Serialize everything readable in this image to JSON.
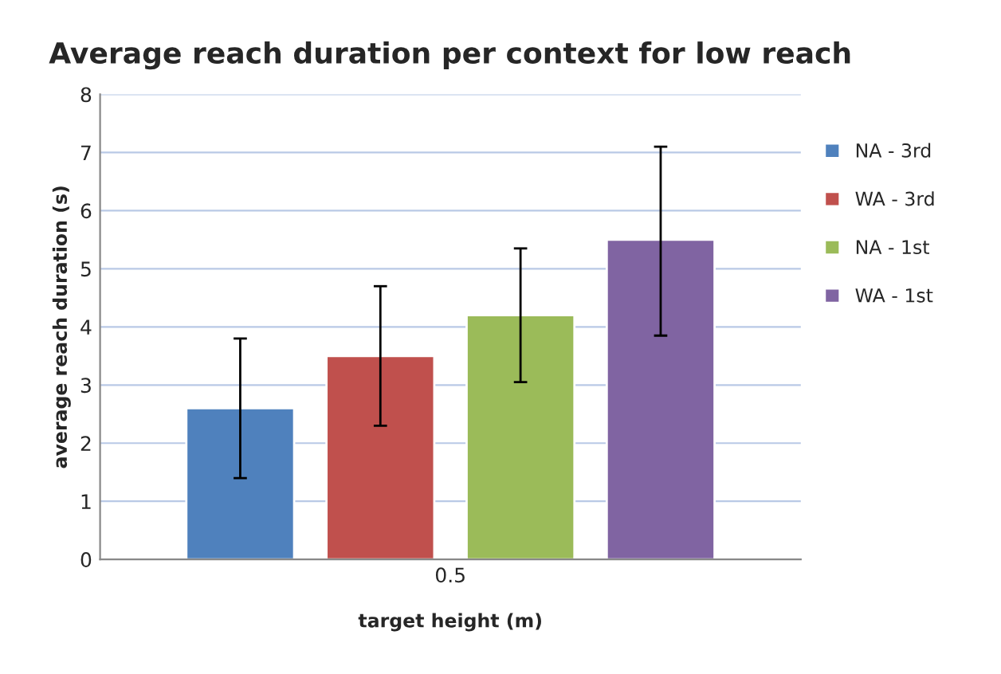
{
  "chart_data": {
    "type": "bar",
    "title": "Average reach duration per context for low reach",
    "xlabel": "target height (m)",
    "ylabel": "average reach duration (s)",
    "categories": [
      "0.5"
    ],
    "series": [
      {
        "name": "NA - 3rd",
        "color": "#4f81bd",
        "values": [
          2.6
        ],
        "errors": [
          [
            1.4,
            3.8
          ]
        ]
      },
      {
        "name": "WA - 3rd",
        "color": "#c0504d",
        "values": [
          3.5
        ],
        "errors": [
          [
            2.3,
            4.7
          ]
        ]
      },
      {
        "name": "NA - 1st",
        "color": "#9bbb59",
        "values": [
          4.2
        ],
        "errors": [
          [
            3.05,
            5.35
          ]
        ]
      },
      {
        "name": "WA - 1st",
        "color": "#8064a2",
        "values": [
          5.5
        ],
        "errors": [
          [
            3.85,
            7.1
          ]
        ]
      }
    ],
    "ylim": [
      0,
      8
    ],
    "yticks": [
      0,
      1,
      2,
      3,
      4,
      5,
      6,
      7,
      8
    ],
    "grid": "y",
    "legend": "right"
  }
}
